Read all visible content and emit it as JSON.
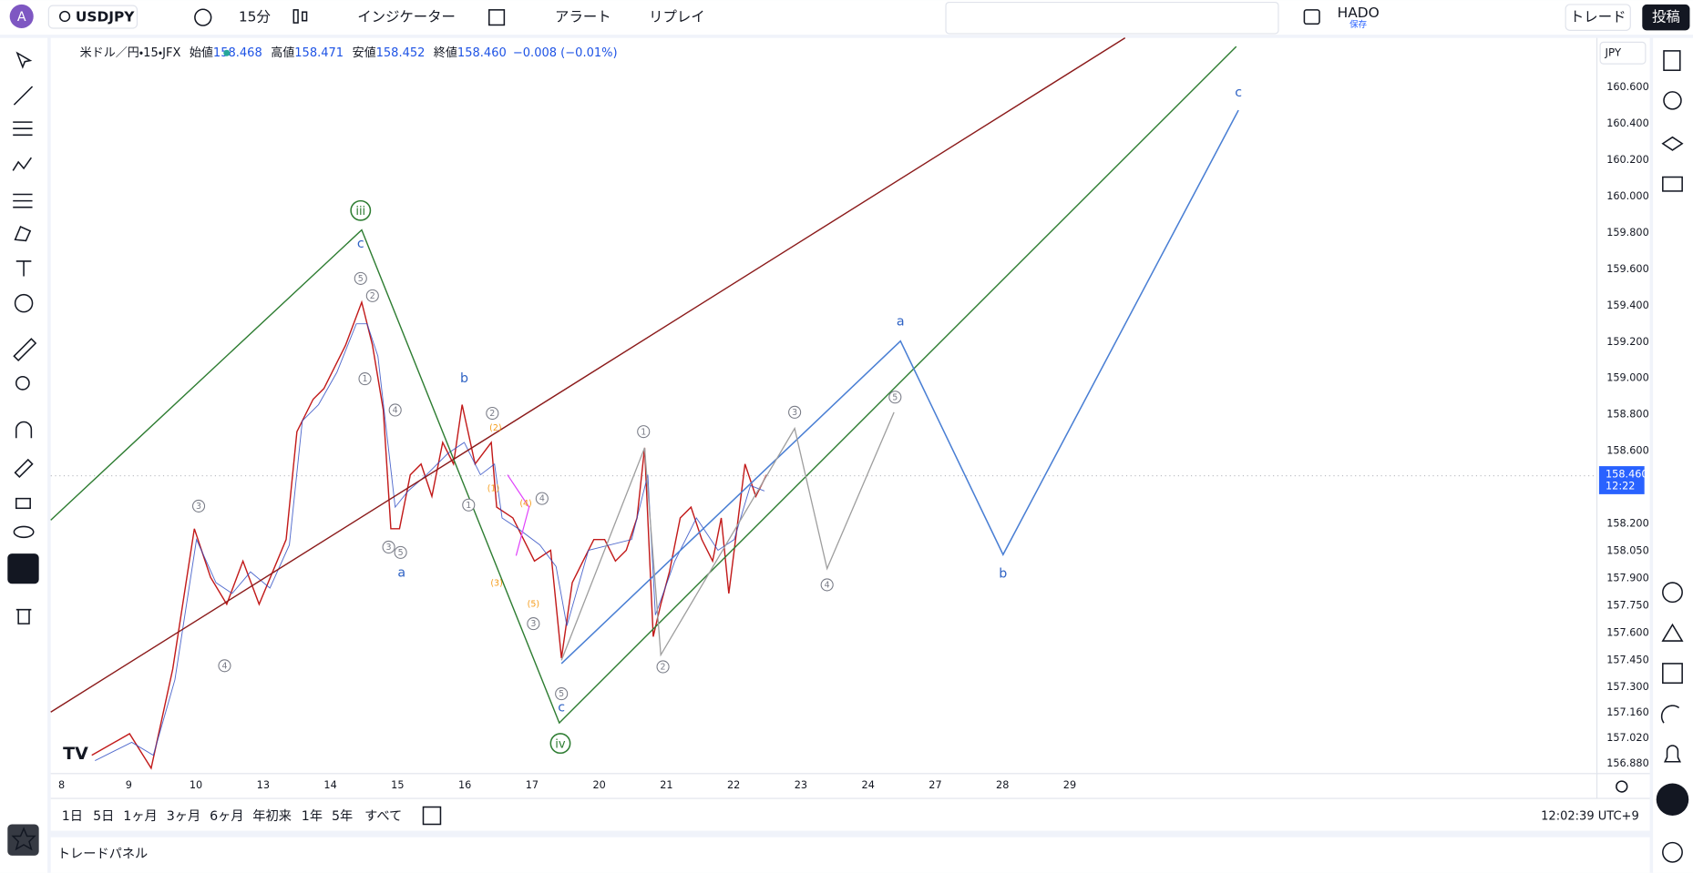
{
  "toolbar": {
    "symbol": "USDJPY",
    "interval": "15分",
    "indicators": "インジケーター",
    "alert": "アラート",
    "replay": "リプレイ",
    "layout_name": "HADO",
    "layout_status": "保存",
    "trade": "トレード",
    "publish": "投稿"
  },
  "legend": {
    "title": "米ドル／円・15・JFX",
    "open_label": "始値",
    "open": "158.468",
    "high_label": "高値",
    "high": "158.471",
    "low_label": "安値",
    "low": "158.452",
    "close_label": "終値",
    "close": "158.460",
    "change": "−0.008 (−0.01%)"
  },
  "price_axis": {
    "currency": "JPY",
    "labels": [
      "160.600",
      "160.400",
      "160.200",
      "160.000",
      "159.800",
      "159.600",
      "159.400",
      "159.200",
      "159.000",
      "158.800",
      "158.600",
      "158.200",
      "158.050",
      "157.900",
      "157.750",
      "157.600",
      "157.450",
      "157.300",
      "157.160",
      "157.020",
      "156.880"
    ],
    "current_price": "158.460",
    "countdown": "12:22"
  },
  "time_axis": {
    "labels": [
      "8",
      "9",
      "10",
      "13",
      "14",
      "15",
      "16",
      "17",
      "20",
      "21",
      "22",
      "23",
      "24",
      "27",
      "28",
      "29"
    ]
  },
  "wave_labels": [
    "iii",
    "c",
    "5",
    "2",
    "1",
    "4",
    "b",
    "2",
    "3",
    "5",
    "a",
    "1",
    "4",
    "3",
    "5",
    "c",
    "iv",
    "1",
    "2",
    "3",
    "4",
    "5",
    "a",
    "b",
    "c",
    "3",
    "4",
    "(3)",
    "(5)",
    "(4)",
    "(1)",
    "(2)"
  ],
  "ranges": [
    "1日",
    "5日",
    "1ヶ月",
    "3ヶ月",
    "6ヶ月",
    "年初来",
    "1年",
    "5年",
    "すべて"
  ],
  "clock": "12:02:39 UTC+9",
  "bottom_panel": "トレードパネル"
}
